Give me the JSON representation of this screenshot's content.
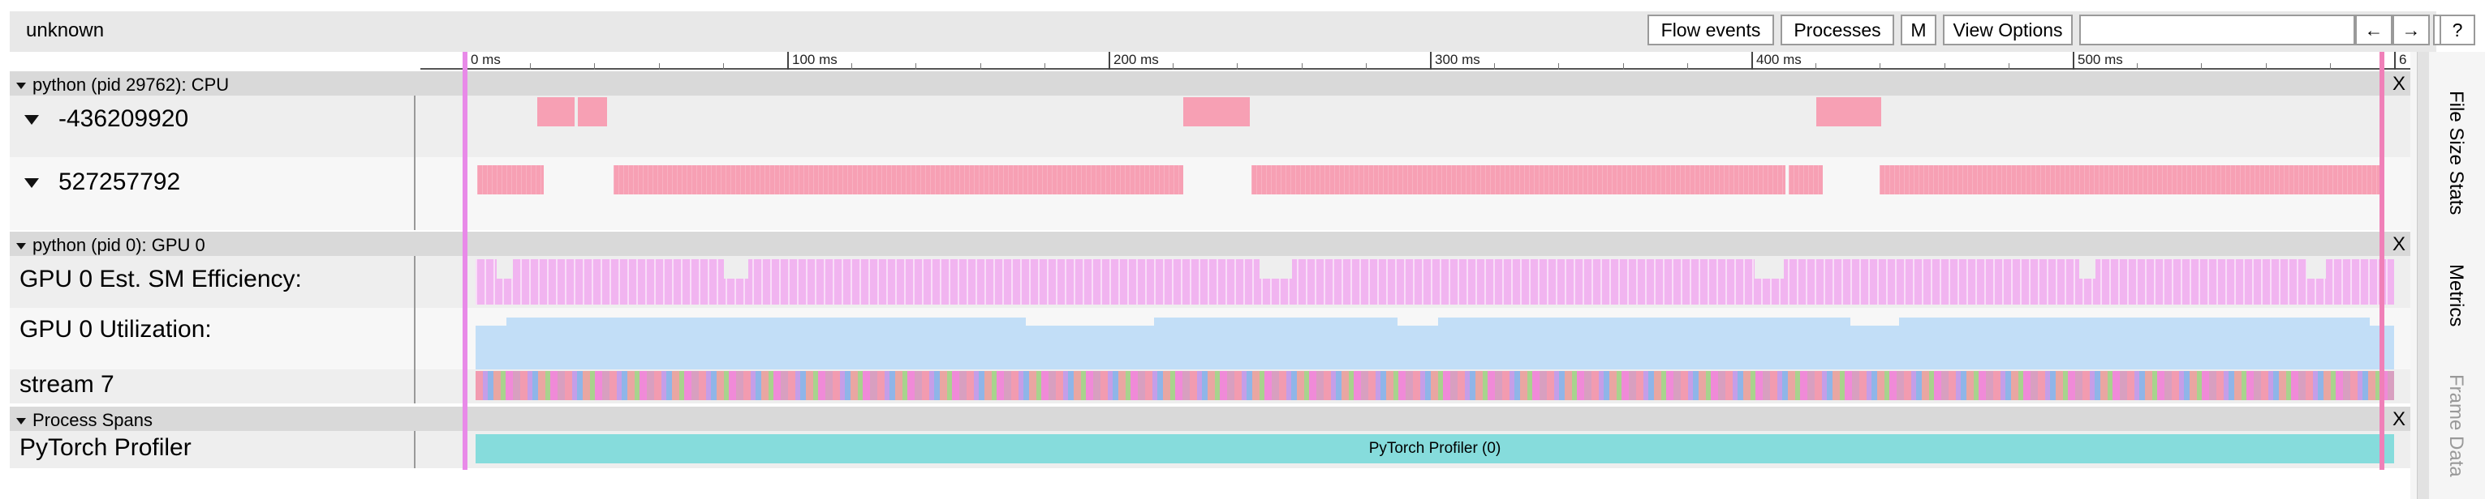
{
  "window": {
    "title": "unknown"
  },
  "toolbar": {
    "flow_events": "Flow events",
    "processes": "Processes",
    "m": "M",
    "view_options": "View Options",
    "search_value": "",
    "prev": "←",
    "next": "→",
    "more": "»",
    "help": "?"
  },
  "ruler": {
    "labels": [
      "0 ms",
      "100 ms",
      "200 ms",
      "300 ms",
      "400 ms",
      "500 ms",
      "6"
    ]
  },
  "processes": {
    "cpu": {
      "label": "python (pid 29762): CPU",
      "close": "X",
      "threads": [
        {
          "label": "-436209920"
        },
        {
          "label": "527257792"
        }
      ]
    },
    "gpu": {
      "label": "python (pid 0): GPU 0",
      "close": "X",
      "tracks": [
        {
          "label": "GPU 0 Est. SM Efficiency:"
        },
        {
          "label": "GPU 0 Utilization:"
        },
        {
          "label": "stream 7"
        }
      ]
    },
    "spans": {
      "label": "Process Spans",
      "close": "X",
      "tracks": [
        {
          "label": "PyTorch Profiler",
          "span": "PyTorch Profiler (0)"
        }
      ]
    }
  },
  "sidebar": {
    "tabs": [
      "File Size Stats",
      "Metrics",
      "Frame Data"
    ]
  },
  "colors": {
    "cpu_slice": "#f7a0b4",
    "sm_eff": "#f1b4f0",
    "util": "#c2def7",
    "span": "#86dcdc",
    "cursor": "#e88ae8"
  }
}
